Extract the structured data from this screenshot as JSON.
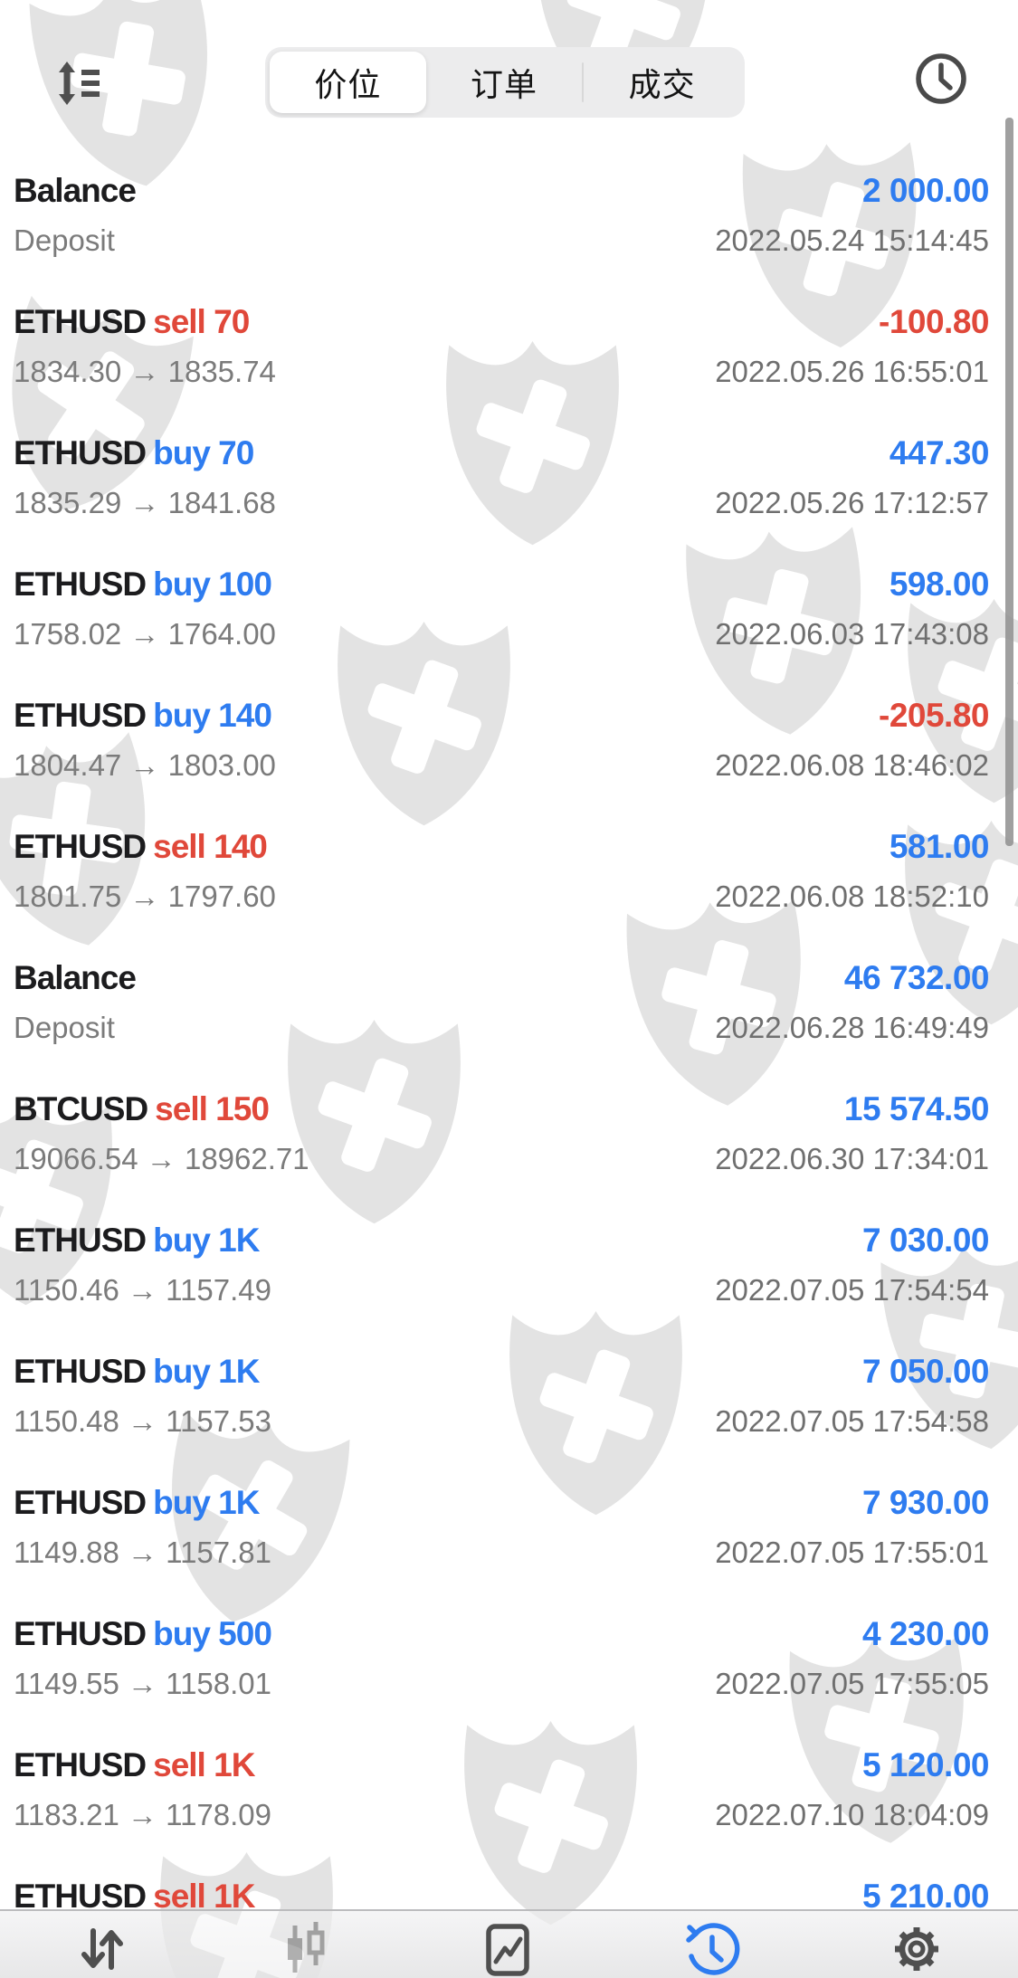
{
  "header": {
    "tabs": [
      {
        "label": "价位",
        "active": true
      },
      {
        "label": "订单",
        "active": false
      },
      {
        "label": "成交",
        "active": false
      }
    ],
    "sort_icon": "sort-arrows-icon",
    "history_icon": "clock-icon"
  },
  "colors": {
    "profit_blue": "#2e7cf0",
    "loss_red": "#e0483a",
    "title_black": "#1c1c1e",
    "detail_gray": "#7b7b7b",
    "watermark_gray": "#e3e3e3"
  },
  "deals": [
    {
      "symbol": "Balance",
      "action": "",
      "side": "",
      "detail": "Deposit",
      "amount": "2 000.00",
      "time": "2022.05.24 15:14:45"
    },
    {
      "symbol": "ETHUSD",
      "action": "sell 70",
      "side": "sell",
      "detail": "1834.30 → 1835.74",
      "amount": "-100.80",
      "time": "2022.05.26 16:55:01"
    },
    {
      "symbol": "ETHUSD",
      "action": "buy 70",
      "side": "buy",
      "detail": "1835.29 → 1841.68",
      "amount": "447.30",
      "time": "2022.05.26 17:12:57"
    },
    {
      "symbol": "ETHUSD",
      "action": "buy 100",
      "side": "buy",
      "detail": "1758.02 → 1764.00",
      "amount": "598.00",
      "time": "2022.06.03 17:43:08"
    },
    {
      "symbol": "ETHUSD",
      "action": "buy 140",
      "side": "buy",
      "detail": "1804.47 → 1803.00",
      "amount": "-205.80",
      "time": "2022.06.08 18:46:02"
    },
    {
      "symbol": "ETHUSD",
      "action": "sell 140",
      "side": "sell",
      "detail": "1801.75 → 1797.60",
      "amount": "581.00",
      "time": "2022.06.08 18:52:10"
    },
    {
      "symbol": "Balance",
      "action": "",
      "side": "",
      "detail": "Deposit",
      "amount": "46 732.00",
      "time": "2022.06.28 16:49:49"
    },
    {
      "symbol": "BTCUSD",
      "action": "sell 150",
      "side": "sell",
      "detail": "19066.54 → 18962.71",
      "amount": "15 574.50",
      "time": "2022.06.30 17:34:01"
    },
    {
      "symbol": "ETHUSD",
      "action": "buy 1K",
      "side": "buy",
      "detail": "1150.46 → 1157.49",
      "amount": "7 030.00",
      "time": "2022.07.05 17:54:54"
    },
    {
      "symbol": "ETHUSD",
      "action": "buy 1K",
      "side": "buy",
      "detail": "1150.48 → 1157.53",
      "amount": "7 050.00",
      "time": "2022.07.05 17:54:58"
    },
    {
      "symbol": "ETHUSD",
      "action": "buy 1K",
      "side": "buy",
      "detail": "1149.88 → 1157.81",
      "amount": "7 930.00",
      "time": "2022.07.05 17:55:01"
    },
    {
      "symbol": "ETHUSD",
      "action": "buy 500",
      "side": "buy",
      "detail": "1149.55 → 1158.01",
      "amount": "4 230.00",
      "time": "2022.07.05 17:55:05"
    },
    {
      "symbol": "ETHUSD",
      "action": "sell 1K",
      "side": "sell",
      "detail": "1183.21 → 1178.09",
      "amount": "5 120.00",
      "time": "2022.07.10 18:04:09"
    },
    {
      "symbol": "ETHUSD",
      "action": "sell 1K",
      "side": "sell",
      "detail": "",
      "amount": "5 210.00",
      "time": ""
    }
  ],
  "nav": {
    "items": [
      {
        "name": "trade",
        "icon": "updown-arrows-icon",
        "active": false
      },
      {
        "name": "quotes",
        "icon": "candlestick-icon",
        "active": false
      },
      {
        "name": "chart",
        "icon": "chart-line-icon",
        "active": false
      },
      {
        "name": "history",
        "icon": "history-clock-icon",
        "active": true
      },
      {
        "name": "settings",
        "icon": "gear-icon",
        "active": false
      }
    ]
  }
}
